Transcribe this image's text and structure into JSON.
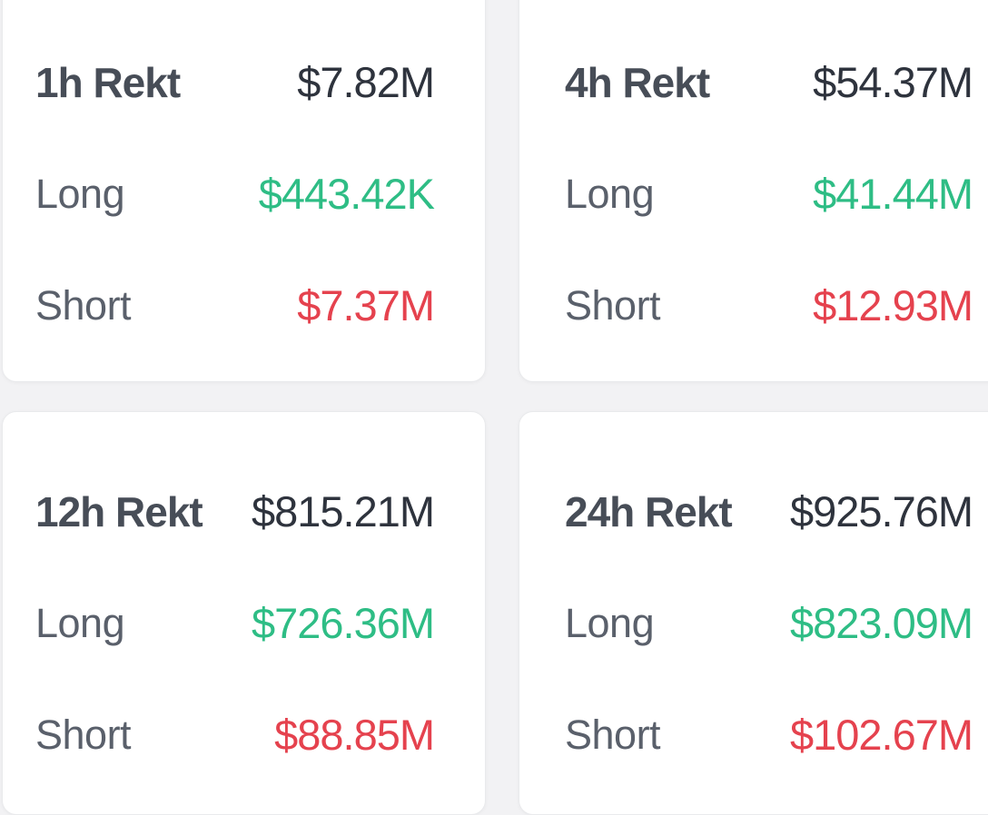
{
  "page": {
    "background": "#f2f2f4"
  },
  "colors": {
    "page_bg": "#f2f2f4",
    "card_bg": "#ffffff",
    "card_border": "#e9eaec",
    "title": "#474d57",
    "total": "#2e333d",
    "label": "#5a606b",
    "long": "#2ebd85",
    "short": "#e5424e"
  },
  "cards": [
    {
      "title": "1h Rekt",
      "total": "$7.82M",
      "long_label": "Long",
      "long_value": "$443.42K",
      "short_label": "Short",
      "short_value": "$7.37M"
    },
    {
      "title": "4h Rekt",
      "total": "$54.37M",
      "long_label": "Long",
      "long_value": "$41.44M",
      "short_label": "Short",
      "short_value": "$12.93M"
    },
    {
      "title": "12h Rekt",
      "total": "$815.21M",
      "long_label": "Long",
      "long_value": "$726.36M",
      "short_label": "Short",
      "short_value": "$88.85M"
    },
    {
      "title": "24h Rekt",
      "total": "$925.76M",
      "long_label": "Long",
      "long_value": "$823.09M",
      "short_label": "Short",
      "short_value": "$102.67M"
    }
  ]
}
